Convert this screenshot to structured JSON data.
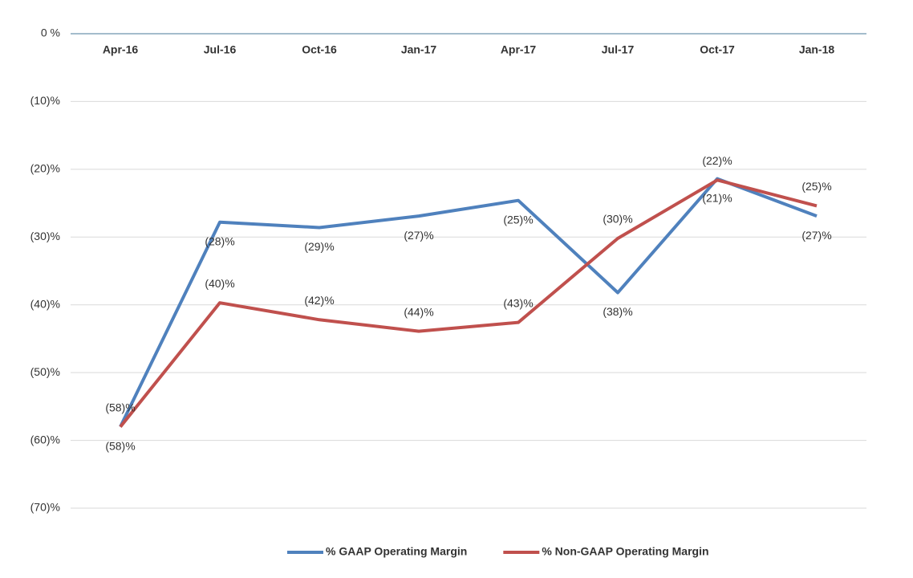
{
  "chart_data": {
    "type": "line",
    "categories": [
      "Apr-16",
      "Jul-16",
      "Oct-16",
      "Jan-17",
      "Apr-17",
      "Jul-17",
      "Oct-17",
      "Jan-18"
    ],
    "series": [
      {
        "name": "% GAAP Operating Margin",
        "color": "#4f81bd",
        "values": [
          -58,
          -27.8,
          -28.6,
          -26.9,
          -24.6,
          -38.2,
          -21.4,
          -26.9
        ],
        "value_labels": [
          "(58)%",
          "(28)%",
          "(29)%",
          "(27)%",
          "(25)%",
          "(38)%",
          "(21)%",
          "(27)%"
        ]
      },
      {
        "name": "% Non-GAAP Operating Margin",
        "color": "#c0504d",
        "values": [
          -58,
          -39.7,
          -42.2,
          -43.9,
          -42.6,
          -30.2,
          -21.6,
          -25.4
        ],
        "value_labels": [
          "(58)%",
          "(40)%",
          "(42)%",
          "(44)%",
          "(43)%",
          "(30)%",
          "(22)%",
          "(25)%"
        ]
      }
    ],
    "ylim": [
      -70,
      0
    ],
    "yticks": [
      {
        "value": 0,
        "label": "0 %"
      },
      {
        "value": -10,
        "label": "(10)%"
      },
      {
        "value": -20,
        "label": "(20)%"
      },
      {
        "value": -30,
        "label": "(30)%"
      },
      {
        "value": -40,
        "label": "(40)%"
      },
      {
        "value": -50,
        "label": "(50)%"
      },
      {
        "value": -60,
        "label": "(60)%"
      },
      {
        "value": -70,
        "label": "(70)%"
      }
    ],
    "grid": true,
    "legend": "bottom"
  }
}
